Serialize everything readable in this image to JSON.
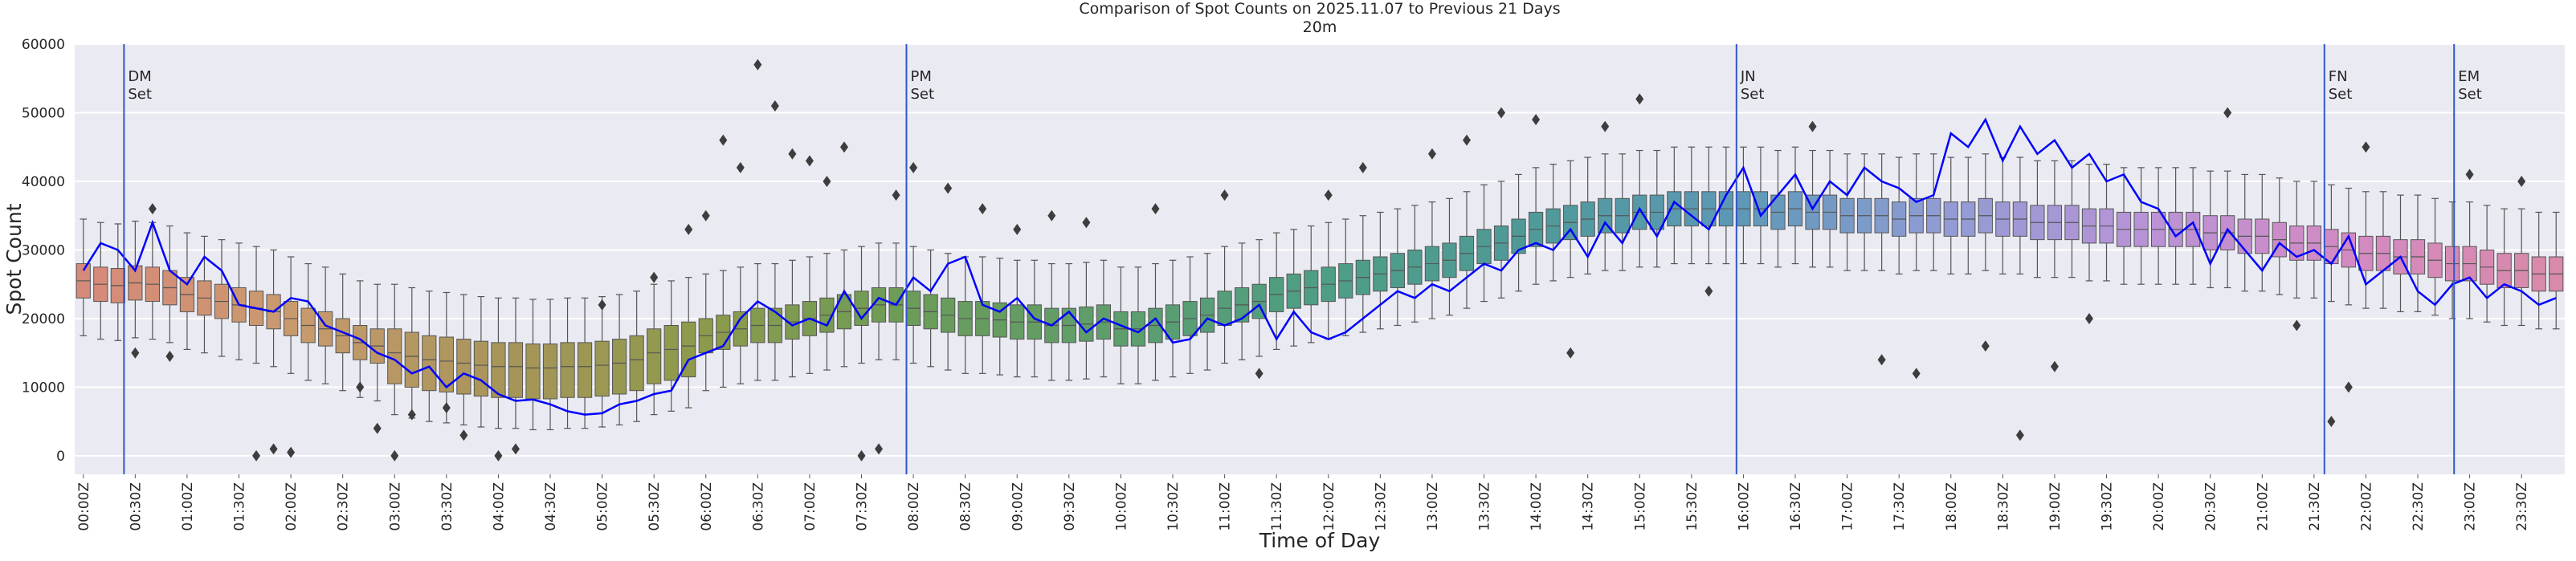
{
  "chart_data": {
    "type": "box",
    "title": "Comparison of Spot Counts on 2025.11.07 to Previous 21 Days",
    "subtitle": "20m",
    "x_label": "Time of Day",
    "y_label": "Spot Count",
    "ylim": [
      -2700,
      60000
    ],
    "yticks": [
      0,
      10000,
      20000,
      30000,
      40000,
      50000,
      60000
    ],
    "grid": true,
    "background": "#eaeaf2",
    "palette": [
      "#d7897a",
      "#c99a6e",
      "#a8955a",
      "#8d9a4b",
      "#6b9c58",
      "#5e9e6c",
      "#4e9e84",
      "#4f9a98",
      "#5c98b5",
      "#8f9cd4",
      "#b893d6",
      "#d38ac2",
      "#d88aa8"
    ],
    "categories": [
      "00:00Z",
      null,
      null,
      "00:30Z",
      null,
      null,
      "01:00Z",
      null,
      null,
      "01:30Z",
      null,
      null,
      "02:00Z",
      null,
      null,
      "02:30Z",
      null,
      null,
      "03:00Z",
      null,
      null,
      "03:30Z",
      null,
      null,
      "04:00Z",
      null,
      null,
      "04:30Z",
      null,
      null,
      "05:00Z",
      null,
      null,
      "05:30Z",
      null,
      null,
      "06:00Z",
      null,
      null,
      "06:30Z",
      null,
      null,
      "07:00Z",
      null,
      null,
      "07:30Z",
      null,
      null,
      "08:00Z",
      null,
      null,
      "08:30Z",
      null,
      null,
      "09:00Z",
      null,
      null,
      "09:30Z",
      null,
      null,
      "10:00Z",
      null,
      null,
      "10:30Z",
      null,
      null,
      "11:00Z",
      null,
      null,
      "11:30Z",
      null,
      null,
      "12:00Z",
      null,
      null,
      "12:30Z",
      null,
      null,
      "13:00Z",
      null,
      null,
      "13:30Z",
      null,
      null,
      "14:00Z",
      null,
      null,
      "14:30Z",
      null,
      null,
      "15:00Z",
      null,
      null,
      "15:30Z",
      null,
      null,
      "16:00Z",
      null,
      null,
      "16:30Z",
      null,
      null,
      "17:00Z",
      null,
      null,
      "17:30Z",
      null,
      null,
      "18:00Z",
      null,
      null,
      "18:30Z",
      null,
      null,
      "19:00Z",
      null,
      null,
      "19:30Z",
      null,
      null,
      "20:00Z",
      null,
      null,
      "20:30Z",
      null,
      null,
      "21:00Z",
      null,
      null,
      "21:30Z",
      null,
      null,
      "22:00Z",
      null,
      null,
      "22:30Z",
      null,
      null,
      "23:00Z",
      null,
      null,
      "23:30Z",
      null,
      null
    ],
    "whislo": [
      17500,
      17000,
      16800,
      17200,
      17000,
      16500,
      15500,
      15000,
      14500,
      14000,
      13500,
      13000,
      12000,
      11000,
      10500,
      9500,
      8500,
      8000,
      6000,
      5500,
      5000,
      4800,
      4500,
      4200,
      4000,
      4000,
      3800,
      3800,
      4000,
      4000,
      4200,
      4500,
      5000,
      6000,
      6500,
      7000,
      9500,
      10000,
      10500,
      11000,
      11000,
      11500,
      12000,
      12500,
      13000,
      13500,
      14000,
      14000,
      13500,
      13000,
      12500,
      12000,
      12000,
      11800,
      11500,
      11500,
      11000,
      11000,
      11200,
      11500,
      10500,
      10500,
      11000,
      11500,
      12000,
      12500,
      13500,
      14000,
      14500,
      15500,
      16000,
      16500,
      17000,
      17500,
      18000,
      18500,
      19000,
      19500,
      20000,
      20500,
      21500,
      22500,
      23000,
      24000,
      25000,
      25500,
      26000,
      26500,
      27000,
      27000,
      27500,
      27500,
      28000,
      28000,
      28000,
      28000,
      28000,
      28000,
      27500,
      28000,
      27500,
      27500,
      27000,
      27000,
      27000,
      26500,
      27000,
      27000,
      26500,
      26500,
      27000,
      26500,
      26500,
      26000,
      26000,
      26000,
      25500,
      25500,
      25000,
      25000,
      25000,
      25000,
      25000,
      24500,
      24500,
      24000,
      24000,
      23500,
      23000,
      23000,
      22500,
      22000,
      21500,
      21500,
      21000,
      21000,
      20500,
      20000,
      20000,
      19500,
      19000,
      19000,
      18500,
      18500
    ],
    "q1": [
      23000,
      22500,
      22300,
      22700,
      22500,
      22000,
      21000,
      20500,
      20000,
      19500,
      19000,
      18500,
      17500,
      16500,
      16000,
      15000,
      14000,
      13500,
      10500,
      10000,
      9500,
      9300,
      9000,
      8700,
      8500,
      8500,
      8300,
      8300,
      8500,
      8500,
      8700,
      9000,
      9500,
      10500,
      11000,
      11500,
      15000,
      15500,
      16000,
      16500,
      16500,
      17000,
      17500,
      18000,
      18500,
      19000,
      19500,
      19500,
      19000,
      18500,
      18000,
      17500,
      17500,
      17300,
      17000,
      17000,
      16500,
      16500,
      16700,
      17000,
      16000,
      16000,
      16500,
      17000,
      17500,
      18000,
      19000,
      19500,
      20000,
      21000,
      21500,
      22000,
      22500,
      23000,
      23500,
      24000,
      24500,
      25000,
      25500,
      26000,
      27000,
      28000,
      28500,
      29500,
      30500,
      31000,
      31500,
      32000,
      32500,
      32500,
      33000,
      33000,
      33500,
      33500,
      33500,
      33500,
      33500,
      33500,
      33000,
      33500,
      33000,
      33000,
      32500,
      32500,
      32500,
      32000,
      32500,
      32500,
      32000,
      32000,
      32500,
      32000,
      32000,
      31500,
      31500,
      31500,
      31000,
      31000,
      30500,
      30500,
      30500,
      30500,
      30500,
      30000,
      30000,
      29500,
      29500,
      29000,
      28500,
      28500,
      28000,
      27500,
      27000,
      27000,
      26500,
      26500,
      26000,
      25500,
      25500,
      25000,
      24500,
      24500,
      24000,
      24000
    ],
    "med": [
      25500,
      25000,
      24800,
      25200,
      25000,
      24500,
      23500,
      23000,
      22500,
      22000,
      21500,
      21000,
      20000,
      19000,
      18500,
      17500,
      16500,
      16000,
      15000,
      14500,
      14000,
      13800,
      13500,
      13200,
      13000,
      13000,
      12800,
      12800,
      13000,
      13000,
      13200,
      13500,
      14000,
      15000,
      15500,
      16000,
      17500,
      18000,
      18500,
      19000,
      19000,
      19500,
      20000,
      20500,
      21000,
      21500,
      22000,
      22000,
      21500,
      21000,
      20500,
      20000,
      20000,
      19800,
      19500,
      19500,
      19000,
      19000,
      19200,
      19500,
      18500,
      18500,
      19000,
      19500,
      20000,
      20500,
      21500,
      22000,
      22500,
      23500,
      24000,
      24500,
      25000,
      25500,
      26000,
      26500,
      27000,
      27500,
      28000,
      28500,
      29500,
      30500,
      31000,
      32000,
      33000,
      33500,
      34000,
      34500,
      35000,
      35000,
      35500,
      35500,
      36000,
      36000,
      36000,
      36000,
      36000,
      36000,
      35500,
      36000,
      35500,
      35500,
      35000,
      35000,
      35000,
      34500,
      35000,
      35000,
      34500,
      34500,
      35000,
      34500,
      34500,
      34000,
      34000,
      34000,
      33500,
      33500,
      33000,
      33000,
      33000,
      33000,
      33000,
      32500,
      32500,
      32000,
      32000,
      31500,
      31000,
      31000,
      30500,
      30000,
      29500,
      29500,
      29000,
      29000,
      28500,
      28000,
      28000,
      27500,
      27000,
      27000,
      26500,
      26500
    ],
    "q3": [
      28000,
      27500,
      27300,
      27700,
      27500,
      27000,
      26000,
      25500,
      25000,
      24500,
      24000,
      23500,
      22500,
      21500,
      21000,
      20000,
      19000,
      18500,
      18500,
      18000,
      17500,
      17300,
      17000,
      16700,
      16500,
      16500,
      16300,
      16300,
      16500,
      16500,
      16700,
      17000,
      17500,
      18500,
      19000,
      19500,
      20000,
      20500,
      21000,
      21500,
      21500,
      22000,
      22500,
      23000,
      23500,
      24000,
      24500,
      24500,
      24000,
      23500,
      23000,
      22500,
      22500,
      22300,
      22000,
      22000,
      21500,
      21500,
      21700,
      22000,
      21000,
      21000,
      21500,
      22000,
      22500,
      23000,
      24000,
      24500,
      25000,
      26000,
      26500,
      27000,
      27500,
      28000,
      28500,
      29000,
      29500,
      30000,
      30500,
      31000,
      32000,
      33000,
      33500,
      34500,
      35500,
      36000,
      36500,
      37000,
      37500,
      37500,
      38000,
      38000,
      38500,
      38500,
      38500,
      38500,
      38500,
      38500,
      38000,
      38500,
      38000,
      38000,
      37500,
      37500,
      37500,
      37000,
      37500,
      37500,
      37000,
      37000,
      37500,
      37000,
      37000,
      36500,
      36500,
      36500,
      36000,
      36000,
      35500,
      35500,
      35500,
      35500,
      35500,
      35000,
      35000,
      34500,
      34500,
      34000,
      33500,
      33500,
      33000,
      32500,
      32000,
      32000,
      31500,
      31500,
      31000,
      30500,
      30500,
      30000,
      29500,
      29500,
      29000,
      29000
    ],
    "whishi": [
      34500,
      34000,
      33800,
      34200,
      34000,
      33500,
      32500,
      32000,
      31500,
      31000,
      30500,
      30000,
      29000,
      28000,
      27500,
      26500,
      25500,
      25000,
      25000,
      24500,
      24000,
      23800,
      23500,
      23200,
      23000,
      23000,
      22800,
      22800,
      23000,
      23000,
      23200,
      23500,
      24000,
      25000,
      25500,
      26000,
      26500,
      27000,
      27500,
      28000,
      28000,
      28500,
      29000,
      29500,
      30000,
      30500,
      31000,
      31000,
      30500,
      30000,
      29500,
      29000,
      29000,
      28800,
      28500,
      28500,
      28000,
      28000,
      28200,
      28500,
      27500,
      27500,
      28000,
      28500,
      29000,
      29500,
      30500,
      31000,
      31500,
      32500,
      33000,
      33500,
      34000,
      34500,
      35000,
      35500,
      36000,
      36500,
      37000,
      37500,
      38500,
      39500,
      40000,
      41000,
      42000,
      42500,
      43000,
      43500,
      44000,
      44000,
      44500,
      44500,
      45000,
      45000,
      45000,
      45000,
      45000,
      45000,
      44500,
      45000,
      44500,
      44500,
      44000,
      44000,
      44000,
      43500,
      44000,
      44000,
      43500,
      43500,
      44000,
      43500,
      43500,
      43000,
      43000,
      43000,
      42500,
      42500,
      42000,
      42000,
      42000,
      42000,
      42000,
      41500,
      41500,
      41000,
      41000,
      40500,
      40000,
      40000,
      39500,
      39000,
      38500,
      38500,
      38000,
      38000,
      37500,
      37000,
      37000,
      36500,
      36000,
      36000,
      35500,
      35500
    ],
    "fliers": [
      [
        3,
        15000
      ],
      [
        4,
        36000
      ],
      [
        5,
        14500
      ],
      [
        10,
        0
      ],
      [
        11,
        1000
      ],
      [
        12,
        500
      ],
      [
        16,
        10000
      ],
      [
        17,
        4000
      ],
      [
        18,
        0
      ],
      [
        19,
        6000
      ],
      [
        21,
        7000
      ],
      [
        22,
        3000
      ],
      [
        24,
        0
      ],
      [
        25,
        1000
      ],
      [
        30,
        22000
      ],
      [
        33,
        26000
      ],
      [
        35,
        33000
      ],
      [
        36,
        35000
      ],
      [
        37,
        46000
      ],
      [
        38,
        42000
      ],
      [
        39,
        57000
      ],
      [
        40,
        51000
      ],
      [
        41,
        44000
      ],
      [
        42,
        43000
      ],
      [
        43,
        40000
      ],
      [
        44,
        45000
      ],
      [
        45,
        0
      ],
      [
        46,
        1000
      ],
      [
        47,
        38000
      ],
      [
        48,
        42000
      ],
      [
        50,
        39000
      ],
      [
        52,
        36000
      ],
      [
        54,
        33000
      ],
      [
        56,
        35000
      ],
      [
        58,
        34000
      ],
      [
        62,
        36000
      ],
      [
        66,
        38000
      ],
      [
        68,
        12000
      ],
      [
        72,
        38000
      ],
      [
        74,
        42000
      ],
      [
        78,
        44000
      ],
      [
        80,
        46000
      ],
      [
        82,
        50000
      ],
      [
        84,
        49000
      ],
      [
        86,
        15000
      ],
      [
        88,
        48000
      ],
      [
        90,
        52000
      ],
      [
        94,
        24000
      ],
      [
        100,
        48000
      ],
      [
        104,
        14000
      ],
      [
        106,
        12000
      ],
      [
        110,
        16000
      ],
      [
        112,
        3000
      ],
      [
        114,
        13000
      ],
      [
        116,
        20000
      ],
      [
        124,
        50000
      ],
      [
        128,
        19000
      ],
      [
        130,
        5000
      ],
      [
        131,
        10000
      ],
      [
        132,
        45000
      ],
      [
        138,
        41000
      ],
      [
        141,
        40000
      ]
    ],
    "line": {
      "color": "#0000ff",
      "values": [
        27000,
        31000,
        30000,
        27000,
        34000,
        27000,
        25000,
        29000,
        27000,
        22000,
        21500,
        21000,
        23000,
        22500,
        19000,
        18000,
        17000,
        15000,
        14000,
        12000,
        13000,
        10000,
        12000,
        11000,
        9000,
        8000,
        8200,
        7500,
        6500,
        6000,
        6200,
        7500,
        8000,
        9000,
        9500,
        14000,
        15000,
        16000,
        20000,
        22500,
        21000,
        19000,
        20000,
        19000,
        24000,
        20000,
        23000,
        22000,
        26000,
        24000,
        28000,
        29000,
        22000,
        21000,
        23000,
        20000,
        19000,
        21000,
        18000,
        20000,
        19000,
        18000,
        20000,
        16500,
        17000,
        20000,
        19000,
        20000,
        22000,
        17000,
        21000,
        18000,
        17000,
        18000,
        20000,
        22000,
        24000,
        23000,
        25000,
        24000,
        26000,
        28000,
        27000,
        30000,
        31000,
        30000,
        33000,
        29000,
        34000,
        31000,
        36000,
        32000,
        37000,
        35000,
        33000,
        38000,
        42000,
        35000,
        38000,
        41000,
        36000,
        40000,
        38000,
        42000,
        40000,
        39000,
        37000,
        38000,
        47000,
        45000,
        49000,
        43000,
        48000,
        44000,
        46000,
        42000,
        44000,
        40000,
        41000,
        37000,
        36000,
        32000,
        34000,
        28000,
        33000,
        30000,
        27000,
        31000,
        29000,
        30000,
        28000,
        32000,
        25000,
        27000,
        29000,
        24000,
        22000,
        25000,
        26000,
        23000,
        25000,
        24000,
        22000,
        23000
      ]
    },
    "markers_color": "#3355cc",
    "markers": [
      {
        "x": 2.85,
        "text": [
          "DM",
          "Set"
        ]
      },
      {
        "x": 48.1,
        "text": [
          "PM",
          "Set"
        ]
      },
      {
        "x": 96.1,
        "text": [
          "JN",
          "Set"
        ]
      },
      {
        "x": 130.1,
        "text": [
          "FN",
          "Set"
        ]
      },
      {
        "x": 137.6,
        "text": [
          "EM",
          "Set"
        ]
      }
    ]
  }
}
